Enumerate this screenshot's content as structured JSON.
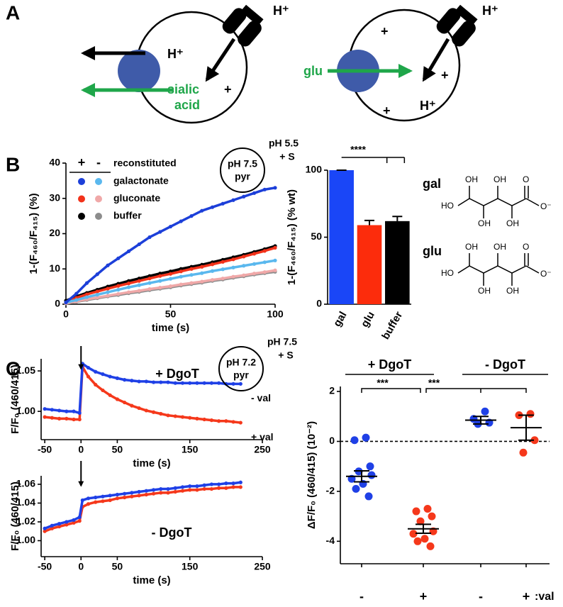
{
  "panel_labels": [
    "A",
    "B",
    "C"
  ],
  "diagram": {
    "left": {
      "channel_ion": "H⁺",
      "exported_ion": "H⁺",
      "exported_substrate": [
        "sialic",
        "acid"
      ],
      "charge": "+"
    },
    "right": {
      "channel_ion": "H⁺",
      "substrate": "glu",
      "charges": [
        "+",
        "+",
        "+"
      ],
      "accumulated_ion": "H⁺"
    }
  },
  "structures": [
    {
      "label": "gal",
      "atoms": [
        "HO",
        "OH",
        "OH",
        "OH",
        "OH",
        "O",
        "O⁻"
      ]
    },
    {
      "label": "glu",
      "atoms": [
        "HO",
        "OH",
        "OH",
        "OH",
        "OH",
        "O",
        "O⁻"
      ]
    }
  ],
  "chart_data": [
    {
      "type": "line",
      "x": [
        0,
        5,
        10,
        15,
        20,
        25,
        30,
        35,
        40,
        45,
        50,
        55,
        60,
        65,
        70,
        75,
        80,
        85,
        90,
        95,
        100
      ],
      "columns": [
        "+",
        "-"
      ],
      "legend_title": "reconstituted",
      "series": [
        {
          "name": "galactonate",
          "colors": [
            "#1c3fd9",
            "#5ab8ee"
          ],
          "values": [
            [
              0.5,
              3,
              6,
              8.5,
              11,
              13,
              15,
              17,
              19,
              20.5,
              22,
              23.5,
              25,
              26.5,
              27.5,
              28.5,
              29.5,
              30.5,
              31.5,
              32.5,
              33
            ],
            [
              0.5,
              1.2,
              2,
              2.7,
              3.4,
              4.1,
              4.8,
              5.4,
              6,
              6.6,
              7.2,
              7.8,
              8.3,
              8.8,
              9.4,
              9.9,
              10.4,
              10.9,
              11.4,
              11.9,
              12.4
            ]
          ]
        },
        {
          "name": "gluconate",
          "colors": [
            "#f2321a",
            "#f0a8a8"
          ],
          "values": [
            [
              0.5,
              1.8,
              2.8,
              3.6,
              4.4,
              5.2,
              5.9,
              6.6,
              7.3,
              8,
              8.6,
              9.3,
              10,
              10.6,
              11.3,
              12,
              12.7,
              13.5,
              14.3,
              15.1,
              16
            ],
            [
              0.3,
              0.8,
              1.4,
              1.9,
              2.4,
              2.9,
              3.4,
              3.8,
              4.3,
              4.7,
              5.1,
              5.6,
              6,
              6.4,
              6.9,
              7.3,
              7.8,
              8.2,
              8.7,
              9.1,
              9.6
            ]
          ]
        },
        {
          "name": "buffer",
          "colors": [
            "#000000",
            "#8c8c8c"
          ],
          "values": [
            [
              1,
              2.2,
              3.2,
              4.1,
              5,
              5.8,
              6.6,
              7.3,
              8,
              8.7,
              9.3,
              10,
              10.6,
              11.2,
              11.9,
              12.6,
              13.3,
              14,
              14.8,
              15.6,
              16.5
            ],
            [
              0.2,
              0.7,
              1.2,
              1.7,
              2.2,
              2.6,
              3.1,
              3.5,
              4,
              4.4,
              4.8,
              5.3,
              5.7,
              6.1,
              6.6,
              7,
              7.5,
              7.9,
              8.4,
              8.8,
              9.2
            ]
          ]
        }
      ],
      "xlim": [
        0,
        100
      ],
      "xticks": [
        0,
        50,
        100
      ],
      "ylim": [
        0,
        40
      ],
      "yticks": [
        0,
        10,
        20,
        30,
        40
      ],
      "xlabel": "time (s)",
      "ylabel": "1-(F₄₆₀/F₄₁₅) (%)",
      "inset": {
        "inside": [
          "pH 7.5",
          "pyr"
        ],
        "outside": [
          "pH 5.5",
          "+ S"
        ]
      }
    },
    {
      "type": "bar",
      "categories": [
        "gal",
        "glu",
        "buffer"
      ],
      "values": [
        100,
        59,
        62
      ],
      "errors": [
        0,
        3.5,
        3.5
      ],
      "colors": [
        "#1a46f7",
        "#fc2c0c",
        "#000000"
      ],
      "ylim": [
        0,
        100
      ],
      "yticks": [
        0,
        50,
        100
      ],
      "ylabel": "1-(F₄₆₀/F₄₁₅) (% wt)",
      "significance": "****"
    },
    {
      "type": "line",
      "x": [
        -50,
        -40,
        -30,
        -20,
        -10,
        -2,
        2,
        10,
        20,
        30,
        40,
        50,
        60,
        70,
        80,
        90,
        100,
        110,
        120,
        130,
        140,
        150,
        160,
        170,
        180,
        190,
        200,
        210,
        220
      ],
      "series": [
        {
          "name": "- val",
          "color": "#1f40e6",
          "values": [
            1.003,
            1.002,
            1.001,
            1.0,
            1.0,
            0.998,
            1.059,
            1.054,
            1.049,
            1.046,
            1.043,
            1.041,
            1.039,
            1.038,
            1.037,
            1.037,
            1.036,
            1.036,
            1.036,
            1.035,
            1.035,
            1.035,
            1.035,
            1.035,
            1.035,
            1.035,
            1.034,
            1.034,
            1.034
          ]
        },
        {
          "name": "+ val",
          "color": "#f5381b",
          "values": [
            0.993,
            0.992,
            0.991,
            0.991,
            0.99,
            0.99,
            1.055,
            1.043,
            1.033,
            1.026,
            1.02,
            1.015,
            1.011,
            1.007,
            1.004,
            1.001,
            0.999,
            0.997,
            0.995,
            0.994,
            0.993,
            0.992,
            0.991,
            0.99,
            0.989,
            0.988,
            0.988,
            0.987,
            0.986
          ]
        }
      ],
      "xlim": [
        -55,
        250
      ],
      "xticks": [
        -50,
        0,
        50,
        150,
        250
      ],
      "ylim": [
        0.965,
        1.065
      ],
      "yticks": [
        {
          "value": 1,
          "label": "1.00"
        },
        {
          "value": 1.05,
          "label": "1.05"
        }
      ],
      "title": "+ DgoT",
      "xlabel": "time (s)",
      "ylabel": "F/F₀ (460/415)",
      "inset": {
        "inside": [
          "pH 7.2",
          "pyr"
        ],
        "outside": [
          "pH 7.5",
          "+ S"
        ]
      }
    },
    {
      "type": "line",
      "x": [
        -50,
        -40,
        -30,
        -20,
        -10,
        -2,
        2,
        10,
        20,
        30,
        40,
        50,
        60,
        70,
        80,
        90,
        100,
        110,
        120,
        130,
        140,
        150,
        160,
        170,
        180,
        190,
        200,
        210,
        220
      ],
      "series": [
        {
          "color": "#1f40e6",
          "values": [
            1.013,
            1.016,
            1.018,
            1.02,
            1.022,
            1.025,
            1.043,
            1.045,
            1.046,
            1.047,
            1.048,
            1.049,
            1.05,
            1.051,
            1.052,
            1.053,
            1.054,
            1.055,
            1.055,
            1.056,
            1.057,
            1.058,
            1.058,
            1.059,
            1.06,
            1.06,
            1.061,
            1.061,
            1.062
          ]
        },
        {
          "color": "#f5381b",
          "values": [
            1.01,
            1.013,
            1.015,
            1.017,
            1.019,
            1.021,
            1.036,
            1.039,
            1.041,
            1.042,
            1.043,
            1.045,
            1.046,
            1.047,
            1.048,
            1.049,
            1.05,
            1.051,
            1.051,
            1.052,
            1.053,
            1.054,
            1.054,
            1.055,
            1.055,
            1.056,
            1.056,
            1.057,
            1.057
          ]
        }
      ],
      "xlim": [
        -55,
        250
      ],
      "xticks": [
        -50,
        0,
        50,
        150,
        250
      ],
      "ylim": [
        0.983,
        1.069
      ],
      "yticks": [
        {
          "value": 1,
          "label": "1.00"
        },
        {
          "value": 1.02,
          "label": "1.02"
        },
        {
          "value": 1.04,
          "label": "1.04"
        },
        {
          "value": 1.06,
          "label": "1.06"
        }
      ],
      "title": "- DgoT",
      "xlabel": "time (s)",
      "ylabel": "F/F₀ (460/415)"
    },
    {
      "type": "dot",
      "categories": [
        "-",
        "+",
        "-",
        "+"
      ],
      "xlabel": ":val",
      "groups": [
        "+ DgoT",
        "- DgoT"
      ],
      "colors": [
        "#1f40e6",
        "#f5381b",
        "#1f40e6",
        "#f5381b"
      ],
      "points": [
        [
          0.15,
          0.05,
          -1.0,
          -1.2,
          -1.35,
          -1.5,
          -1.7,
          -1.9,
          -2.2
        ],
        [
          -2.7,
          -2.8,
          -3.0,
          -3.2,
          -3.6,
          -3.7,
          -3.9,
          -4.0,
          -4.2
        ],
        [
          1.2,
          0.9,
          0.75,
          0.7
        ],
        [
          1.1,
          1.05,
          0.05,
          -0.45
        ]
      ],
      "means": [
        -1.4,
        -3.5,
        0.85,
        0.55
      ],
      "errors": [
        0.22,
        0.18,
        0.15,
        0.5
      ],
      "ylim": [
        -4.9,
        2.2
      ],
      "yticks": [
        -4,
        -2,
        0,
        2
      ],
      "reference_line": 0,
      "ylabel": "ΔF/F₀ (460/415) (10⁻²)",
      "significance": [
        "***",
        "***"
      ]
    }
  ]
}
